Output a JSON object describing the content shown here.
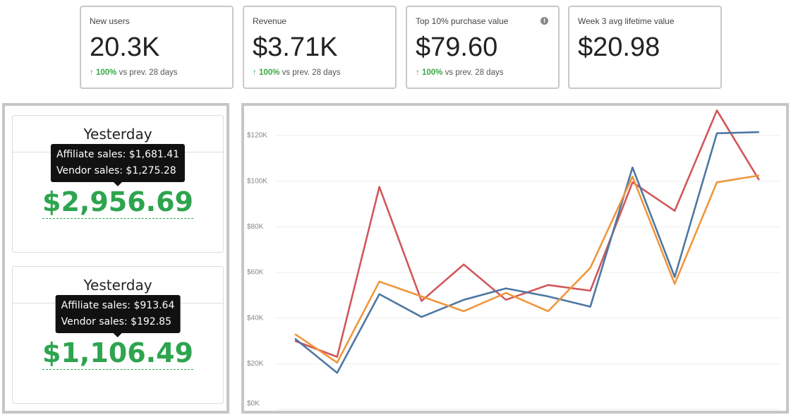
{
  "kpis": [
    {
      "label": "New users",
      "value": "20.3K",
      "change": "100%",
      "change_note": "vs prev. 28 days"
    },
    {
      "label": "Revenue",
      "value": "$3.71K",
      "change": "100%",
      "change_note": "vs prev. 28 days"
    },
    {
      "label": "Top 10% purchase value",
      "value": "$79.60",
      "change": "100%",
      "change_note": "vs prev. 28 days"
    },
    {
      "label": "Week 3 avg lifetime value",
      "value": "$20.98"
    }
  ],
  "sales": [
    {
      "title": "Yesterday",
      "tooltip": [
        "Affiliate sales: $1,681.41",
        "Vendor sales: $1,275.28"
      ],
      "total": "$2,956.69"
    },
    {
      "title": "Yesterday",
      "tooltip": [
        "Affiliate sales: $913.64",
        "Vendor sales: $192.85"
      ],
      "total": "$1,106.49"
    }
  ],
  "chart_data": {
    "type": "line",
    "series": [
      {
        "color": "#d0575b",
        "values": [
          30000,
          23000,
          97500,
          47500,
          63500,
          48000,
          54500,
          52000,
          99500,
          87000,
          131000,
          100500
        ]
      },
      {
        "color": "#4e77a3",
        "values": [
          31000,
          16000,
          50500,
          40500,
          48000,
          53000,
          49500,
          45000,
          106000,
          58000,
          121000,
          121500
        ]
      },
      {
        "color": "#f0963c",
        "values": [
          33000,
          20500,
          56000,
          49500,
          43000,
          51000,
          43000,
          62000,
          102000,
          55000,
          99500,
          102500
        ]
      }
    ],
    "ylim": [
      0,
      133000
    ],
    "yticks": [
      {
        "value": 0,
        "label": "$0K"
      },
      {
        "value": 20000,
        "label": "$20K"
      },
      {
        "value": 40000,
        "label": "$40K"
      },
      {
        "value": 60000,
        "label": "$60K"
      },
      {
        "value": 80000,
        "label": "$80K"
      },
      {
        "value": 100000,
        "label": "$100K"
      },
      {
        "value": 120000,
        "label": "$120K"
      }
    ],
    "grid": true
  }
}
